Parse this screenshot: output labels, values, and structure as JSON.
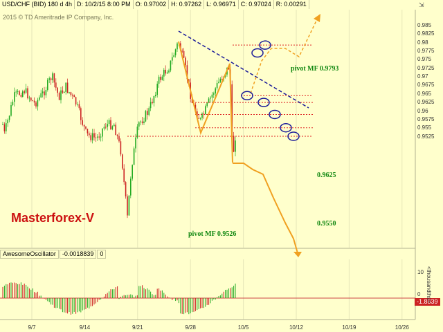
{
  "header": {
    "symbol": "USD/CHF (BID) 180 d 4h",
    "date": "D: 10/2/15 8:00 PM",
    "open": "O: 0.97002",
    "high": "H: 0.97262",
    "low": "L: 0.96971",
    "close": "C: 0.97024",
    "range": "R: 0.00291"
  },
  "copyright": "2015 © TD Ameritrade IP Company, Inc.",
  "brand": "Masterforex-V",
  "annotations": {
    "pivot_top": "pivot MF 0.9793",
    "level_0625": "0.9625",
    "level_0550": "0.9550",
    "pivot_bottom": "pivot MF 0.9526"
  },
  "oscillator": {
    "name": "AwesomeOscillator",
    "value": "-0.0018839",
    "extra": "0",
    "badge": "-1.8839",
    "units": "<thousandths>",
    "scale_top": "10",
    "scale_mid": "0"
  },
  "price_axis": [
    "0.985",
    "0.9825",
    "0.98",
    "0.9775",
    "0.975",
    "0.9725",
    "0.97",
    "0.9675",
    "0.965",
    "0.9625",
    "0.96",
    "0.9575",
    "0.955",
    "0.9525"
  ],
  "time_axis": [
    "9/7",
    "9/14",
    "9/21",
    "9/28",
    "10/5",
    "10/12",
    "10/19",
    "10/26"
  ],
  "colors": {
    "background": "#ffffcc",
    "up_candle": "#22aa22",
    "down_candle": "#cc2222",
    "trendline": "#1a1a99",
    "pattern": "#f0a020",
    "level": "#dd2222",
    "brand": "#cc1111"
  },
  "icons": {
    "corner": "cursor-arrows-icon"
  }
}
